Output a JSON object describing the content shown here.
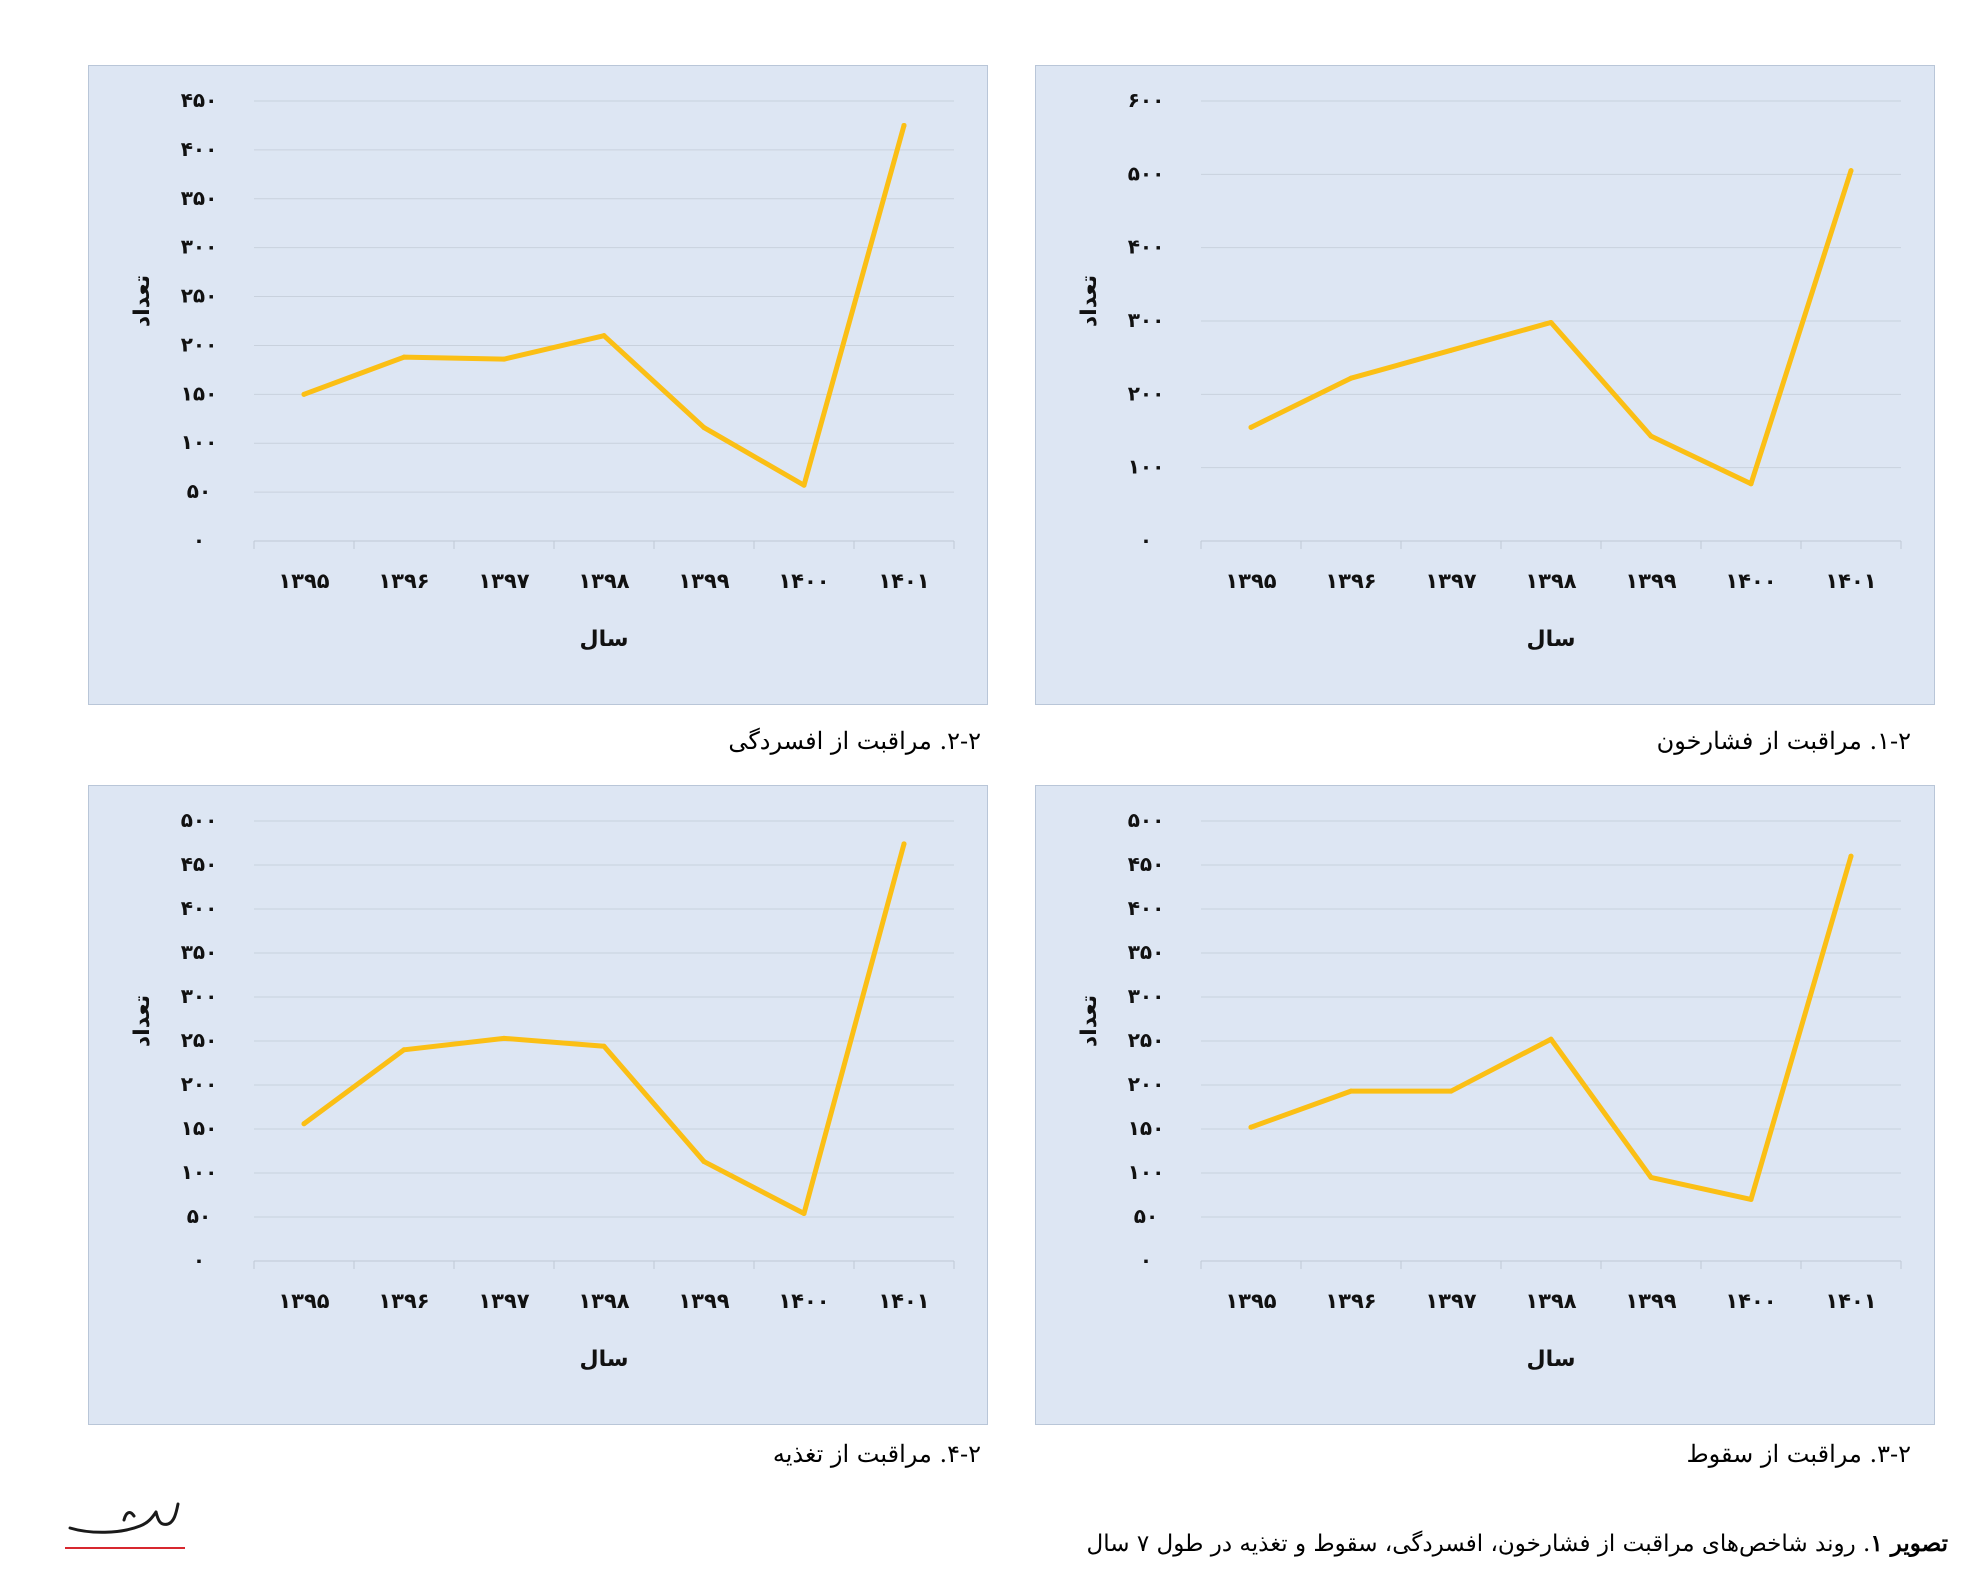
{
  "chart_data": [
    {
      "type": "line",
      "caption": "۱-۲. مراقبت از فشارخون",
      "xlabel": "سال",
      "ylabel": "تعداد",
      "categories": [
        "۱۳۹۵",
        "۱۳۹۶",
        "۱۳۹۷",
        "۱۳۹۸",
        "۱۳۹۹",
        "۱۴۰۰",
        "۱۴۰۱"
      ],
      "values": [
        155,
        222,
        260,
        298,
        143,
        78,
        505
      ],
      "ylim": [
        0,
        600
      ],
      "yticks": [
        0,
        100,
        200,
        300,
        400,
        500,
        600
      ],
      "ytick_labels": [
        "۰",
        "۱۰۰",
        "۲۰۰",
        "۳۰۰",
        "۴۰۰",
        "۵۰۰",
        "۶۰۰"
      ],
      "line_color": "#fbbf15",
      "grid": true
    },
    {
      "type": "line",
      "caption": "۲-۲. مراقبت از افسردگی",
      "xlabel": "سال",
      "ylabel": "تعداد",
      "categories": [
        "۱۳۹۵",
        "۱۳۹۶",
        "۱۳۹۷",
        "۱۳۹۸",
        "۱۳۹۹",
        "۱۴۰۰",
        "۱۴۰۱"
      ],
      "values": [
        150,
        188,
        186,
        210,
        116,
        57,
        425
      ],
      "ylim": [
        0,
        450
      ],
      "yticks": [
        0,
        50,
        100,
        150,
        200,
        250,
        300,
        350,
        400,
        450
      ],
      "ytick_labels": [
        "۰",
        "۵۰",
        "۱۰۰",
        "۱۵۰",
        "۲۰۰",
        "۲۵۰",
        "۳۰۰",
        "۳۵۰",
        "۴۰۰",
        "۴۵۰"
      ],
      "line_color": "#fbbf15",
      "grid": true
    },
    {
      "type": "line",
      "caption": "۳-۲. مراقبت از سقوط",
      "xlabel": "سال",
      "ylabel": "تعداد",
      "categories": [
        "۱۳۹۵",
        "۱۳۹۶",
        "۱۳۹۷",
        "۱۳۹۸",
        "۱۳۹۹",
        "۱۴۰۰",
        "۱۴۰۱"
      ],
      "values": [
        152,
        193,
        193,
        252,
        95,
        70,
        460
      ],
      "ylim": [
        0,
        500
      ],
      "yticks": [
        0,
        50,
        100,
        150,
        200,
        250,
        300,
        350,
        400,
        450,
        500
      ],
      "ytick_labels": [
        "۰",
        "۵۰",
        "۱۰۰",
        "۱۵۰",
        "۲۰۰",
        "۲۵۰",
        "۳۰۰",
        "۳۵۰",
        "۴۰۰",
        "۴۵۰",
        "۵۰۰"
      ],
      "line_color": "#fbbf15",
      "grid": true
    },
    {
      "type": "line",
      "caption": "۴-۲. مراقبت از تغذیه",
      "xlabel": "سال",
      "ylabel": "تعداد",
      "categories": [
        "۱۳۹۵",
        "۱۳۹۶",
        "۱۳۹۷",
        "۱۳۹۸",
        "۱۳۹۹",
        "۱۴۰۰",
        "۱۴۰۱"
      ],
      "values": [
        156,
        240,
        253,
        244,
        113,
        54,
        474
      ],
      "ylim": [
        0,
        500
      ],
      "yticks": [
        0,
        50,
        100,
        150,
        200,
        250,
        300,
        350,
        400,
        450,
        500
      ],
      "ytick_labels": [
        "۰",
        "۵۰",
        "۱۰۰",
        "۱۵۰",
        "۲۰۰",
        "۲۵۰",
        "۳۰۰",
        "۳۵۰",
        "۴۰۰",
        "۴۵۰",
        "۵۰۰"
      ],
      "line_color": "#fbbf15",
      "grid": true
    }
  ],
  "figure_caption": {
    "label": "تصویر ۱",
    "text": ". روند شاخص‌های مراقبت از فشارخون، افسردگی، سقوط و تغذیه در طول ۷ سال"
  },
  "logo": {
    "text": "سالمند",
    "color": "#d7282f"
  }
}
